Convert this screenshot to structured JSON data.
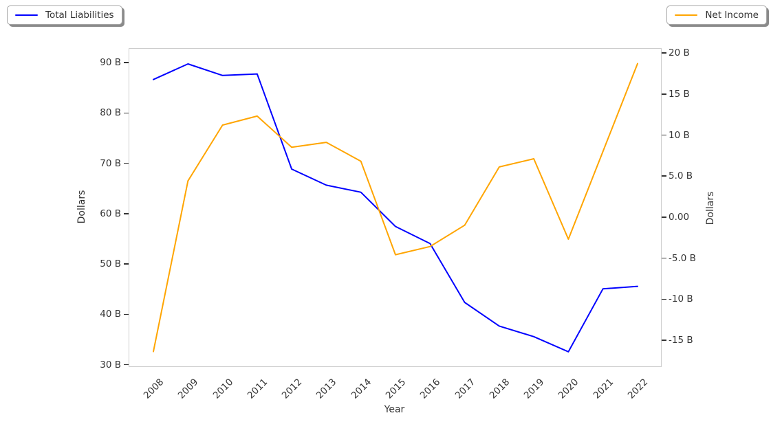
{
  "legends": [
    {
      "label": "Total Liabilities",
      "color": "#0000ff"
    },
    {
      "label": "Net Income",
      "color": "#ffa500"
    }
  ],
  "chart_data": {
    "type": "line",
    "title": "",
    "xlabel": "Year",
    "x": [
      "2008",
      "2009",
      "2010",
      "2011",
      "2012",
      "2013",
      "2014",
      "2015",
      "2016",
      "2017",
      "2018",
      "2019",
      "2020",
      "2021",
      "2022"
    ],
    "series": [
      {
        "name": "Total Liabilities",
        "axis": "left",
        "color": "#0000ff",
        "unit": "billion dollars",
        "values": [
          86.8,
          89.9,
          87.6,
          87.9,
          69.0,
          65.8,
          64.4,
          57.6,
          54.2,
          42.5,
          37.8,
          35.7,
          32.7,
          45.2,
          45.7
        ]
      },
      {
        "name": "Net Income",
        "axis": "right",
        "color": "#ffa500",
        "unit": "billion dollars",
        "values": [
          -16.3,
          4.5,
          11.3,
          12.4,
          8.6,
          9.2,
          6.9,
          -4.5,
          -3.5,
          -0.9,
          6.2,
          7.2,
          -2.6,
          8.1,
          18.8
        ]
      }
    ],
    "left_axis": {
      "label": "Dollars",
      "ticks": [
        90,
        80,
        70,
        60,
        50,
        40,
        30
      ],
      "tick_labels": [
        "90 B",
        "80 B",
        "70 B",
        "60 B",
        "50 B",
        "40 B",
        "30 B"
      ],
      "range": [
        29.8,
        92.9
      ]
    },
    "right_axis": {
      "label": "Dollars",
      "ticks": [
        20,
        15,
        10,
        5,
        0,
        -5,
        -10,
        -15
      ],
      "tick_labels": [
        "20 B",
        "15 B",
        "10 B",
        "5.0 B",
        "0.00",
        "-5.0 B",
        "-10 B",
        "-15 B"
      ],
      "range": [
        -18.1,
        20.6
      ]
    },
    "grid": false,
    "legend_positions": [
      "upper left",
      "upper right"
    ]
  }
}
